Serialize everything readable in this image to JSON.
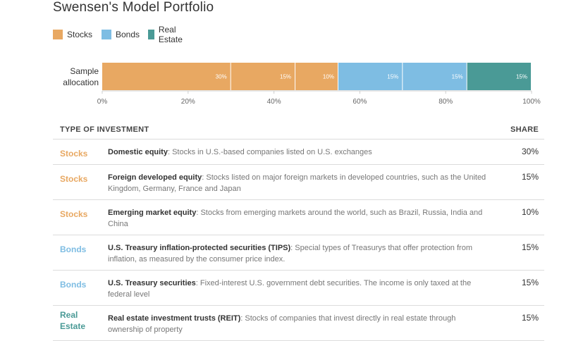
{
  "title": "Swensen's Model Portfolio",
  "legend": [
    {
      "label": "Stocks",
      "color": "#e8a862"
    },
    {
      "label": "Bonds",
      "color": "#7ebde3"
    },
    {
      "label": "Real Estate",
      "color": "#4a9a96"
    }
  ],
  "chart_data": {
    "type": "bar",
    "orientation": "horizontal-stacked",
    "categories": [
      "Sample allocation"
    ],
    "category_label_lines": [
      "Sample",
      "allocation"
    ],
    "segments": [
      {
        "group": "Stocks",
        "value": 30,
        "label": "30%",
        "color": "#e8a862"
      },
      {
        "group": "Stocks",
        "value": 15,
        "label": "15%",
        "color": "#e8a862"
      },
      {
        "group": "Stocks",
        "value": 10,
        "label": "10%",
        "color": "#e8a862"
      },
      {
        "group": "Bonds",
        "value": 15,
        "label": "15%",
        "color": "#7ebde3"
      },
      {
        "group": "Bonds",
        "value": 15,
        "label": "15%",
        "color": "#7ebde3"
      },
      {
        "group": "Real Estate",
        "value": 15,
        "label": "15%",
        "color": "#4a9a96"
      }
    ],
    "xlim": [
      0,
      100
    ],
    "x_ticks": [
      "0%",
      "20%",
      "40%",
      "60%",
      "80%",
      "100%"
    ],
    "title": "Swensen's Model Portfolio"
  },
  "table": {
    "col_type": "TYPE OF INVESTMENT",
    "col_share": "SHARE",
    "rows": [
      {
        "category": "Stocks",
        "cat_color": "#e8a862",
        "name": "Domestic equity",
        "desc": ": Stocks in U.S.-based companies listed on U.S. exchanges",
        "share": "30%"
      },
      {
        "category": "Stocks",
        "cat_color": "#e8a862",
        "name": "Foreign developed equity",
        "desc": ": Stocks listed on major foreign markets in developed countries, such as the United Kingdom, Germany, France and Japan",
        "share": "15%"
      },
      {
        "category": "Stocks",
        "cat_color": "#e8a862",
        "name": "Emerging market equity",
        "desc": ": Stocks from emerging markets around the world, such as Brazil, Russia, India and China",
        "share": "10%"
      },
      {
        "category": "Bonds",
        "cat_color": "#7ebde3",
        "name": "U.S. Treasury inflation-protected securities (TIPS)",
        "desc": ": Special types of Treasurys that offer protection from inflation, as measured by the consumer price index.",
        "share": "15%"
      },
      {
        "category": "Bonds",
        "cat_color": "#7ebde3",
        "name": "U.S. Treasury securities",
        "desc": ": Fixed-interest U.S. government debt securities. The income is only taxed at the federal level",
        "share": "15%"
      },
      {
        "category": "Real Estate",
        "cat_color": "#4a9a96",
        "name": "Real estate investment trusts (REIT)",
        "desc": ": Stocks of companies that invest directly in real estate through ownership of property",
        "share": "15%"
      }
    ]
  }
}
